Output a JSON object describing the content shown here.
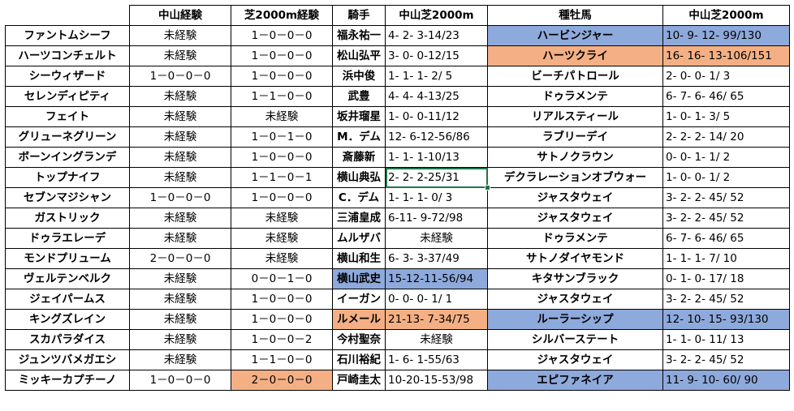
{
  "header": {
    "col1": "中山経験",
    "col2": "芝2000m経験",
    "col3": "騎手",
    "col4": "中山芝2000m",
    "col5": "種牡馬",
    "col6": "中山芝2000m"
  },
  "colors": {
    "highlight_blue": "#8ea9db",
    "highlight_orange": "#f4b084",
    "selection_border": "#217346"
  },
  "rows": [
    {
      "horse": "ファントムシーフ",
      "nakayama": "未経験",
      "turf2000": "1－0－0－0",
      "jockey": "福永祐一",
      "jockey_rec": "4- 2- 3-14/23",
      "sire": "ハービンジャー",
      "sire_rec": "10- 9- 12- 99/130",
      "sire_hl": "blue",
      "sire_rec_hl": "blue"
    },
    {
      "horse": "ハーツコンチェルト",
      "nakayama": "未経験",
      "turf2000": "1－0－0－0",
      "jockey": "松山弘平",
      "jockey_rec": "3- 0- 0-12/15",
      "sire": "ハーツクライ",
      "sire_rec": "16- 16- 13-106/151",
      "sire_hl": "orange",
      "sire_rec_hl": "orange"
    },
    {
      "horse": "シーウィザード",
      "nakayama": "1－0－0－0",
      "turf2000": "1－0－0－0",
      "jockey": "浜中俊",
      "jockey_rec": "1- 1- 1- 2/ 5",
      "sire": "ビーチパトロール",
      "sire_rec": "2- 0- 0- 1/ 3"
    },
    {
      "horse": "セレンディピティ",
      "nakayama": "未経験",
      "turf2000": "1－1－0－0",
      "jockey": "武豊",
      "jockey_rec": "4- 4- 4-13/25",
      "sire": "ドゥラメンテ",
      "sire_rec": "6- 7- 6- 46/ 65"
    },
    {
      "horse": "フェイト",
      "nakayama": "未経験",
      "turf2000": "未経験",
      "jockey": "坂井瑠星",
      "jockey_rec": "1- 0- 0-11/12",
      "sire": "リアルスティール",
      "sire_rec": "1- 0- 1- 3/ 5"
    },
    {
      "horse": "グリューネグリーン",
      "nakayama": "未経験",
      "turf2000": "1－0－1－0",
      "jockey": "M．デム",
      "jockey_rec": "12- 6-12-56/86",
      "sire": "ラブリーデイ",
      "sire_rec": "2- 2- 2- 14/ 20"
    },
    {
      "horse": "ボーンイングランデ",
      "nakayama": "未経験",
      "turf2000": "1－0－0－0",
      "jockey": "斎藤新",
      "jockey_rec": "1- 1- 1-10/13",
      "sire": "サトノクラウン",
      "sire_rec": "0- 0- 1- 1/ 2"
    },
    {
      "horse": "トップナイフ",
      "nakayama": "未経験",
      "turf2000": "1－1－0－1",
      "jockey": "横山典弘",
      "jockey_rec": "2- 2- 2-25/31",
      "jockey_rec_selected": true,
      "sire": "デクラレーションオブウォー",
      "sire_rec": "1- 0- 0- 1/ 2"
    },
    {
      "horse": "セブンマジシャン",
      "nakayama": "1－0－0－0",
      "turf2000": "1－0－0－0",
      "jockey": "C．デム",
      "jockey_rec": "1- 1- 1- 0/ 3",
      "sire": "ジャスタウェイ",
      "sire_rec": "3- 2- 2- 45/ 52"
    },
    {
      "horse": "ガストリック",
      "nakayama": "未経験",
      "turf2000": "未経験",
      "jockey": "三浦皇成",
      "jockey_rec": "6-11- 9-72/98",
      "sire": "ジャスタウェイ",
      "sire_rec": "3- 2- 2- 45/ 52"
    },
    {
      "horse": "ドゥラエレーデ",
      "nakayama": "未経験",
      "turf2000": "未経験",
      "jockey": "ムルザバ",
      "jockey_rec": "未経験",
      "jockey_rec_center": true,
      "sire": "ドゥラメンテ",
      "sire_rec": "6- 7- 6- 46/ 65"
    },
    {
      "horse": "モンドプリューム",
      "nakayama": "2－0－0－0",
      "turf2000": "未経験",
      "jockey": "横山和生",
      "jockey_rec": "6- 3- 3-37/49",
      "sire": "サトノダイヤモンド",
      "sire_rec": "1- 1- 1- 7/ 10"
    },
    {
      "horse": "ヴェルテンベルク",
      "nakayama": "未経験",
      "turf2000": "0－0－1－0",
      "jockey": "横山武史",
      "jockey_rec": "15-12-11-56/94",
      "jockey_hl": "blue",
      "jockey_rec_hl": "blue",
      "sire": "キタサンブラック",
      "sire_rec": "0- 1- 0- 17/ 18"
    },
    {
      "horse": "ジェイパームス",
      "nakayama": "未経験",
      "turf2000": "1－0－0－0",
      "jockey": "イーガン",
      "jockey_rec": "0- 0- 0- 1/ 1",
      "sire": "ジャスタウェイ",
      "sire_rec": "3- 2- 2- 45/ 52"
    },
    {
      "horse": "キングズレイン",
      "nakayama": "未経験",
      "turf2000": "1－0－0－0",
      "jockey": "ルメール",
      "jockey_rec": "21-13- 7-34/75",
      "jockey_hl": "orange",
      "jockey_rec_hl": "orange",
      "sire": "ルーラーシップ",
      "sire_rec": "12- 10- 15- 93/130",
      "sire_hl": "blue",
      "sire_rec_hl": "blue"
    },
    {
      "horse": "スカパラダイス",
      "nakayama": "未経験",
      "turf2000": "1－0－0－2",
      "jockey": "今村聖奈",
      "jockey_rec": "未経験",
      "jockey_rec_center": true,
      "sire": "シルバーステート",
      "sire_rec": "1- 1- 0- 11/ 13"
    },
    {
      "horse": "ジュンツバメガエシ",
      "nakayama": "未経験",
      "turf2000": "1－1－0－0",
      "jockey": "石川裕紀",
      "jockey_rec": "1- 6- 1-55/63",
      "sire": "ジャスタウェイ",
      "sire_rec": "3- 2- 2- 45/ 52"
    },
    {
      "horse": "ミッキーカプチーノ",
      "nakayama": "1－0－0－0",
      "turf2000": "2－0－0－0",
      "turf2000_hl": "orange",
      "jockey": "戸崎圭太",
      "jockey_rec": "10-20-15-53/98",
      "sire": "エピファネイア",
      "sire_rec": "11- 9- 10- 60/ 90",
      "sire_hl": "blue",
      "sire_rec_hl": "blue"
    }
  ]
}
